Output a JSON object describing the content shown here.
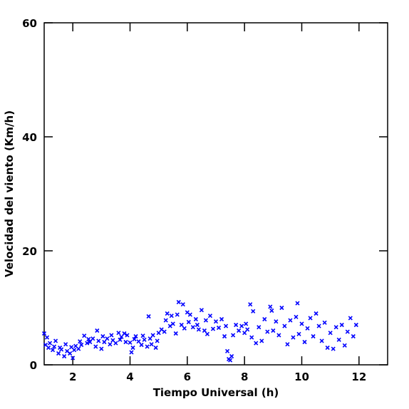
{
  "chart_data": {
    "type": "scatter",
    "xlabel": "Tiempo Universal (h)",
    "ylabel": "Velocidad del viento (Km/h)",
    "xlim": [
      1,
      13
    ],
    "ylim": [
      0,
      60
    ],
    "xticks": [
      2,
      4,
      6,
      8,
      10,
      12
    ],
    "yticks": [
      0,
      20,
      40,
      60
    ],
    "color": "#0000ff",
    "x": [
      1.0,
      1.05,
      1.1,
      1.15,
      1.2,
      1.3,
      1.35,
      1.4,
      1.5,
      1.55,
      1.6,
      1.7,
      1.75,
      1.8,
      1.9,
      1.95,
      2.0,
      2.05,
      2.1,
      2.2,
      2.25,
      2.3,
      2.4,
      2.5,
      2.55,
      2.6,
      2.7,
      2.8,
      2.85,
      2.9,
      3.0,
      3.05,
      3.1,
      3.2,
      3.3,
      3.35,
      3.4,
      3.5,
      3.6,
      3.65,
      3.7,
      3.8,
      3.85,
      3.9,
      4.0,
      4.05,
      4.1,
      4.15,
      4.2,
      4.3,
      4.4,
      4.45,
      4.5,
      4.6,
      4.65,
      4.7,
      4.75,
      4.8,
      4.9,
      4.95,
      5.0,
      5.1,
      5.2,
      5.25,
      5.3,
      5.4,
      5.45,
      5.5,
      5.6,
      5.65,
      5.7,
      5.8,
      5.85,
      5.9,
      6.0,
      6.05,
      6.1,
      6.2,
      6.3,
      6.35,
      6.4,
      6.5,
      6.6,
      6.65,
      6.7,
      6.8,
      6.9,
      7.0,
      7.1,
      7.2,
      7.3,
      7.35,
      7.4,
      7.45,
      7.5,
      7.55,
      7.6,
      7.7,
      7.8,
      7.9,
      8.0,
      8.05,
      8.1,
      8.2,
      8.25,
      8.3,
      8.4,
      8.5,
      8.6,
      8.7,
      8.8,
      8.9,
      8.95,
      9.0,
      9.1,
      9.2,
      9.3,
      9.4,
      9.5,
      9.6,
      9.7,
      9.8,
      9.85,
      9.9,
      10.0,
      10.1,
      10.2,
      10.3,
      10.4,
      10.5,
      10.6,
      10.7,
      10.8,
      10.9,
      11.0,
      11.1,
      11.2,
      11.3,
      11.4,
      11.5,
      11.6,
      11.7,
      11.8,
      11.9
    ],
    "values": [
      5.5,
      3.5,
      4.8,
      3.0,
      3.8,
      2.6,
      3.2,
      4.2,
      2.0,
      3.0,
      2.7,
      1.5,
      3.6,
      2.4,
      2.0,
      3.1,
      1.2,
      2.6,
      3.3,
      2.8,
      4.1,
      3.5,
      5.1,
      3.8,
      4.5,
      4.0,
      4.6,
      3.2,
      6.0,
      4.2,
      2.8,
      5.0,
      4.0,
      4.6,
      3.6,
      5.2,
      4.3,
      3.8,
      5.6,
      4.4,
      4.9,
      5.5,
      4.0,
      5.2,
      3.9,
      2.2,
      3.0,
      4.5,
      5.0,
      4.1,
      3.5,
      5.1,
      4.4,
      3.2,
      8.5,
      4.6,
      3.6,
      5.2,
      3.0,
      4.2,
      5.6,
      6.2,
      5.8,
      7.8,
      9.0,
      6.8,
      8.6,
      7.2,
      5.5,
      8.8,
      11.0,
      7.0,
      10.6,
      6.4,
      9.2,
      7.5,
      8.8,
      6.6,
      8.0,
      7.0,
      6.2,
      9.6,
      6.0,
      7.8,
      5.4,
      8.6,
      6.3,
      7.6,
      6.5,
      8.0,
      5.0,
      6.8,
      2.4,
      1.0,
      0.8,
      1.5,
      5.2,
      7.0,
      6.0,
      6.8,
      5.6,
      7.2,
      6.2,
      10.6,
      4.8,
      9.4,
      3.8,
      6.6,
      4.2,
      8.0,
      5.8,
      10.2,
      9.5,
      6.0,
      7.6,
      5.2,
      10.0,
      6.8,
      3.6,
      7.8,
      4.8,
      8.4,
      10.8,
      5.4,
      7.2,
      4.0,
      6.4,
      8.2,
      5.0,
      9.0,
      6.8,
      4.2,
      7.4,
      3.0,
      5.6,
      2.8,
      6.6,
      4.4,
      7.0,
      3.4,
      5.8,
      8.2,
      5.0,
      7.0
    ]
  }
}
